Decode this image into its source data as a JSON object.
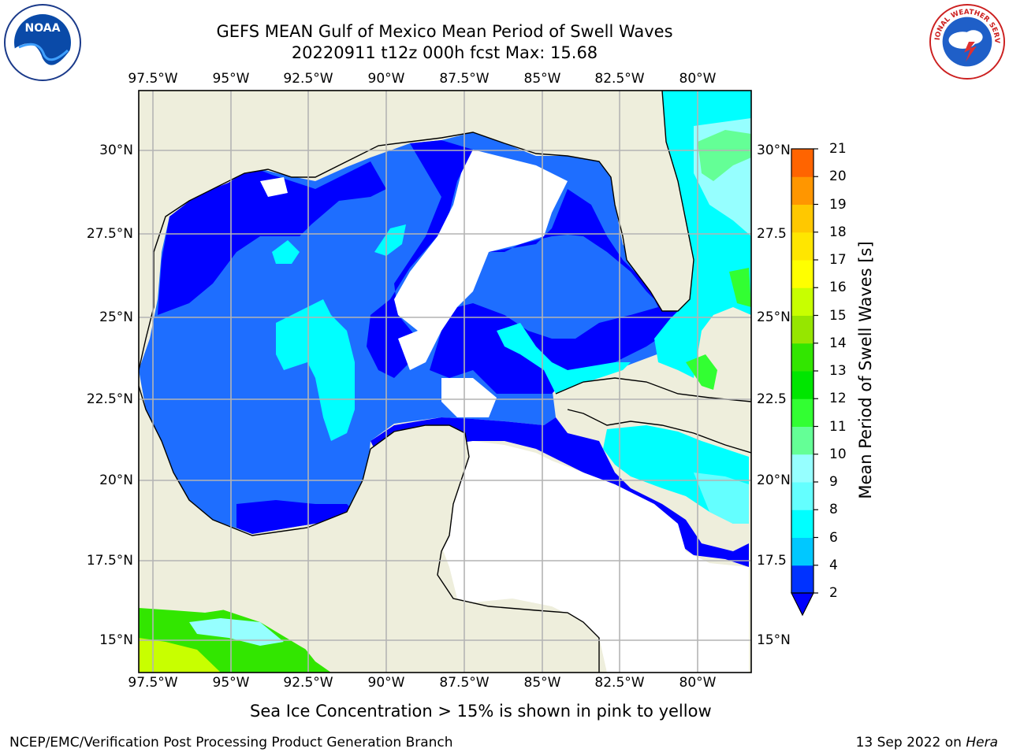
{
  "title_line1": "GEFS MEAN Gulf of Mexico Mean Period of Swell Waves",
  "title_line2": "20220911 t12z 000h fcst   Max: 15.68",
  "lon_labels": [
    "97.5°W",
    "95°W",
    "92.5°W",
    "90°W",
    "87.5°W",
    "85°W",
    "82.5°W",
    "80°W"
  ],
  "lat_labels_left": [
    "30°N",
    "27.5°N",
    "25°N",
    "22.5°N",
    "20°N",
    "17.5°N",
    "15°N"
  ],
  "lat_labels_right": [
    "30°N",
    "27.5",
    "25°N",
    "22.5",
    "20°N",
    "17.5",
    "15°N"
  ],
  "colorbar": {
    "label": "Mean Period of Swell Waves [s]",
    "ticks": [
      "2",
      "4",
      "6",
      "8",
      "9",
      "10",
      "11",
      "12",
      "13",
      "14",
      "15",
      "16",
      "17",
      "18",
      "19",
      "20",
      "21"
    ],
    "colors": [
      "#0032ff",
      "#00c8ff",
      "#00ffff",
      "#64ffff",
      "#96ffff",
      "#64ff96",
      "#32ff32",
      "#00e600",
      "#32e600",
      "#96e600",
      "#c8ff00",
      "#ffff00",
      "#ffe600",
      "#ffc800",
      "#ff9600",
      "#ff6400",
      "#ff3200",
      "#ff0000"
    ],
    "extend_color": "#0000ff"
  },
  "map": {
    "land_color": "#eeeedc",
    "ocean_nodata_color": "#ffffff",
    "deep_blue": "#0000ff",
    "mid_blue": "#1e6eff",
    "grid_color": "#b4b4b4"
  },
  "logos": {
    "left": "noaa-logo",
    "right": "nws-logo",
    "noaa_text": "NOAA",
    "nws_text": "NATIONAL WEATHER SERVICE"
  },
  "note": "Sea Ice Concentration > 15% is shown in pink to yellow",
  "footer_left": "NCEP/EMC/Verification Post Processing Product Generation Branch",
  "footer_right_prefix": "13 Sep 2022 on ",
  "footer_right_host": "Hera"
}
